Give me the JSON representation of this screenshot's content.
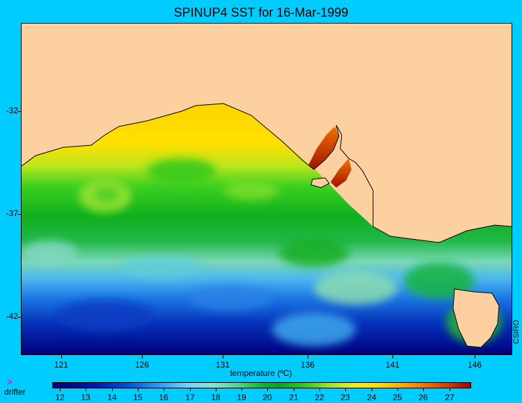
{
  "title": "SPINUP4 SST for 16-Mar-1999",
  "credit": "CSIRO",
  "y_axis": {
    "ticks": [
      "-32",
      "-37",
      "-42"
    ]
  },
  "x_axis": {
    "ticks": [
      "121",
      "126",
      "131",
      "136",
      "141",
      "146"
    ]
  },
  "colorbar": {
    "title": "temperature (ºC)",
    "ticks": [
      "12",
      "13",
      "14",
      "15",
      "16",
      "17",
      "18",
      "19",
      "20",
      "21",
      "22",
      "23",
      "24",
      "25",
      "26",
      "27"
    ]
  },
  "legend": {
    "drifter_icon": "drifter-marker-icon",
    "drifter_label": "drifter"
  },
  "colors": {
    "background": "#00ccff",
    "land": "#fdd0a0",
    "drifter": "#ff00ff"
  }
}
